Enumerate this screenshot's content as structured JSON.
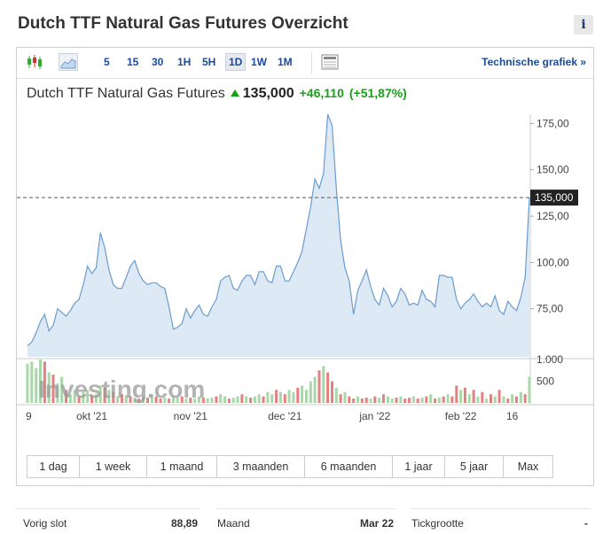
{
  "page": {
    "title": "Dutch TTF Natural Gas Futures Overzicht",
    "info_label": "i"
  },
  "toolbar": {
    "timeframes": [
      "5",
      "15",
      "30",
      "1H",
      "5H",
      "1D",
      "1W",
      "1M"
    ],
    "active_timeframe": "1D",
    "tech_link": "Technische grafiek »"
  },
  "header": {
    "name": "Dutch TTF Natural Gas Futures",
    "price": "135,000",
    "change": "+46,110",
    "change_pct": "(+51,87%)"
  },
  "chart_data": {
    "type": "area",
    "y_ticks": [
      "175,00",
      "150,00",
      "125,00",
      "100,00",
      "75,00"
    ],
    "y_tick_values": [
      175,
      150,
      125,
      100,
      75
    ],
    "ylim": [
      49,
      180
    ],
    "current_price_label": "135,000",
    "current_price": 135,
    "x_labels": [
      "9",
      "okt '21",
      "nov '21",
      "dec '21",
      "jan '22",
      "feb '22",
      "16"
    ],
    "x_label_positions": [
      0,
      15,
      38,
      60,
      81,
      101,
      113
    ],
    "volume_ticks": [
      "1.000",
      "500"
    ],
    "volume_tick_values": [
      1000,
      500
    ],
    "watermark": "Investing.com",
    "series": [
      {
        "values": [
          55,
          57,
          62,
          68,
          72,
          63,
          66,
          75,
          73,
          71,
          74,
          78,
          80,
          88,
          98,
          94,
          97,
          116,
          108,
          96,
          88,
          86,
          86,
          92,
          98,
          101,
          94,
          90,
          88,
          89,
          89,
          87,
          86,
          76,
          64,
          65,
          67,
          75,
          70,
          74,
          77,
          72,
          71,
          76,
          80,
          90,
          92,
          93,
          86,
          85,
          90,
          93,
          93,
          88,
          95,
          95,
          90,
          89,
          98,
          98,
          90,
          90,
          95,
          100,
          106,
          118,
          130,
          145,
          140,
          148,
          180,
          174,
          140,
          112,
          97,
          90,
          72,
          85,
          90,
          96,
          87,
          80,
          77,
          86,
          82,
          76,
          79,
          86,
          83,
          77,
          78,
          77,
          85,
          80,
          79,
          76,
          93,
          93,
          92,
          92,
          80,
          75,
          78,
          80,
          83,
          79,
          76,
          78,
          76,
          82,
          74,
          72,
          79,
          76,
          74,
          81,
          92,
          135
        ]
      }
    ],
    "volume": [
      {
        "v": 900,
        "c": "g"
      },
      {
        "v": 950,
        "c": "g"
      },
      {
        "v": 800,
        "c": "g"
      },
      {
        "v": 1000,
        "c": "g"
      },
      {
        "v": 950,
        "c": "r"
      },
      {
        "v": 700,
        "c": "g"
      },
      {
        "v": 650,
        "c": "r"
      },
      {
        "v": 450,
        "c": "g"
      },
      {
        "v": 600,
        "c": "g"
      },
      {
        "v": 300,
        "c": "r"
      },
      {
        "v": 200,
        "c": "g"
      },
      {
        "v": 300,
        "c": "g"
      },
      {
        "v": 150,
        "c": "r"
      },
      {
        "v": 250,
        "c": "g"
      },
      {
        "v": 300,
        "c": "g"
      },
      {
        "v": 180,
        "c": "r"
      },
      {
        "v": 200,
        "c": "g"
      },
      {
        "v": 400,
        "c": "g"
      },
      {
        "v": 350,
        "c": "r"
      },
      {
        "v": 300,
        "c": "g"
      },
      {
        "v": 250,
        "c": "r"
      },
      {
        "v": 150,
        "c": "g"
      },
      {
        "v": 200,
        "c": "r"
      },
      {
        "v": 180,
        "c": "g"
      },
      {
        "v": 150,
        "c": "r"
      },
      {
        "v": 120,
        "c": "g"
      },
      {
        "v": 100,
        "c": "r"
      },
      {
        "v": 150,
        "c": "g"
      },
      {
        "v": 120,
        "c": "r"
      },
      {
        "v": 200,
        "c": "g"
      },
      {
        "v": 150,
        "c": "r"
      },
      {
        "v": 100,
        "c": "r"
      },
      {
        "v": 120,
        "c": "g"
      },
      {
        "v": 100,
        "c": "r"
      },
      {
        "v": 150,
        "c": "g"
      },
      {
        "v": 120,
        "c": "g"
      },
      {
        "v": 150,
        "c": "r"
      },
      {
        "v": 100,
        "c": "g"
      },
      {
        "v": 120,
        "c": "r"
      },
      {
        "v": 100,
        "c": "g"
      },
      {
        "v": 150,
        "c": "g"
      },
      {
        "v": 120,
        "c": "r"
      },
      {
        "v": 100,
        "c": "g"
      },
      {
        "v": 120,
        "c": "g"
      },
      {
        "v": 150,
        "c": "r"
      },
      {
        "v": 200,
        "c": "g"
      },
      {
        "v": 150,
        "c": "g"
      },
      {
        "v": 100,
        "c": "r"
      },
      {
        "v": 120,
        "c": "g"
      },
      {
        "v": 150,
        "c": "g"
      },
      {
        "v": 200,
        "c": "r"
      },
      {
        "v": 150,
        "c": "g"
      },
      {
        "v": 120,
        "c": "r"
      },
      {
        "v": 150,
        "c": "g"
      },
      {
        "v": 200,
        "c": "g"
      },
      {
        "v": 150,
        "c": "r"
      },
      {
        "v": 250,
        "c": "g"
      },
      {
        "v": 200,
        "c": "g"
      },
      {
        "v": 300,
        "c": "r"
      },
      {
        "v": 250,
        "c": "g"
      },
      {
        "v": 200,
        "c": "r"
      },
      {
        "v": 300,
        "c": "g"
      },
      {
        "v": 250,
        "c": "g"
      },
      {
        "v": 350,
        "c": "r"
      },
      {
        "v": 400,
        "c": "g"
      },
      {
        "v": 300,
        "c": "g"
      },
      {
        "v": 500,
        "c": "g"
      },
      {
        "v": 600,
        "c": "g"
      },
      {
        "v": 750,
        "c": "r"
      },
      {
        "v": 850,
        "c": "g"
      },
      {
        "v": 700,
        "c": "r"
      },
      {
        "v": 500,
        "c": "r"
      },
      {
        "v": 350,
        "c": "g"
      },
      {
        "v": 200,
        "c": "r"
      },
      {
        "v": 250,
        "c": "g"
      },
      {
        "v": 150,
        "c": "r"
      },
      {
        "v": 100,
        "c": "r"
      },
      {
        "v": 150,
        "c": "g"
      },
      {
        "v": 100,
        "c": "r"
      },
      {
        "v": 120,
        "c": "r"
      },
      {
        "v": 100,
        "c": "g"
      },
      {
        "v": 150,
        "c": "r"
      },
      {
        "v": 120,
        "c": "g"
      },
      {
        "v": 200,
        "c": "r"
      },
      {
        "v": 150,
        "c": "g"
      },
      {
        "v": 100,
        "c": "g"
      },
      {
        "v": 120,
        "c": "r"
      },
      {
        "v": 150,
        "c": "g"
      },
      {
        "v": 100,
        "c": "r"
      },
      {
        "v": 120,
        "c": "r"
      },
      {
        "v": 150,
        "c": "g"
      },
      {
        "v": 100,
        "c": "r"
      },
      {
        "v": 120,
        "c": "g"
      },
      {
        "v": 150,
        "c": "r"
      },
      {
        "v": 200,
        "c": "g"
      },
      {
        "v": 100,
        "c": "r"
      },
      {
        "v": 120,
        "c": "g"
      },
      {
        "v": 150,
        "c": "r"
      },
      {
        "v": 200,
        "c": "g"
      },
      {
        "v": 150,
        "c": "r"
      },
      {
        "v": 400,
        "c": "r"
      },
      {
        "v": 300,
        "c": "g"
      },
      {
        "v": 350,
        "c": "r"
      },
      {
        "v": 200,
        "c": "g"
      },
      {
        "v": 300,
        "c": "r"
      },
      {
        "v": 150,
        "c": "g"
      },
      {
        "v": 250,
        "c": "r"
      },
      {
        "v": 100,
        "c": "g"
      },
      {
        "v": 200,
        "c": "r"
      },
      {
        "v": 150,
        "c": "g"
      },
      {
        "v": 300,
        "c": "r"
      },
      {
        "v": 150,
        "c": "g"
      },
      {
        "v": 100,
        "c": "r"
      },
      {
        "v": 200,
        "c": "g"
      },
      {
        "v": 150,
        "c": "r"
      },
      {
        "v": 250,
        "c": "g"
      },
      {
        "v": 200,
        "c": "r"
      },
      {
        "v": 600,
        "c": "g"
      }
    ],
    "colors": {
      "line": "#6a9ccf",
      "fill": "#dde9f4",
      "vol_green": "#a8d8a8",
      "vol_red": "#e38080",
      "dash": "#555555",
      "price_box": "#222222"
    }
  },
  "ranges": [
    "1 dag",
    "1 week",
    "1 maand",
    "3 maanden",
    "6 maanden",
    "1 jaar",
    "5 jaar",
    "Max"
  ],
  "stats": [
    {
      "label": "Vorig slot",
      "value": "88,89"
    },
    {
      "label": "Maand",
      "value": "Mar 22"
    },
    {
      "label": "Tickgrootte",
      "value": "-"
    }
  ]
}
